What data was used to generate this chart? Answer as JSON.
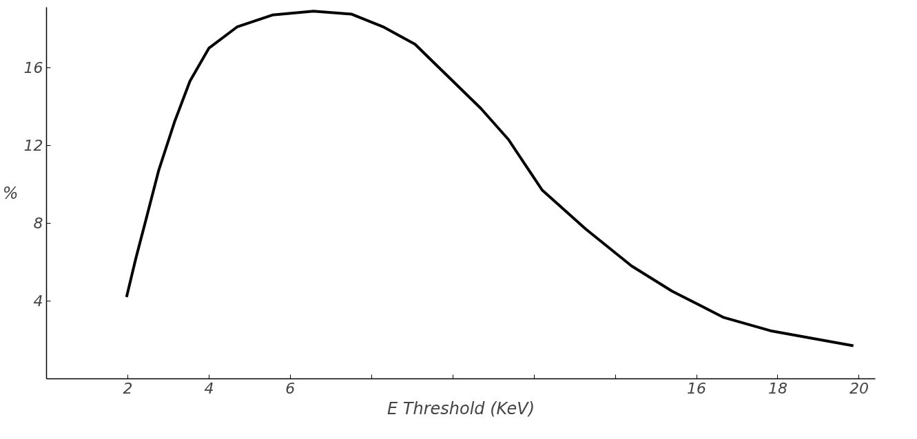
{
  "chart_data": {
    "type": "line",
    "xlabel": "E Threshold (KeV)",
    "ylabel": "%",
    "x": [
      1.97,
      2.2,
      2.45,
      2.76,
      3.15,
      3.53,
      4.0,
      4.7,
      5.56,
      6.57,
      7.5,
      8.28,
      8.72,
      9.07,
      9.56,
      10.69,
      11.37,
      12.2,
      13.27,
      14.4,
      15.4,
      16.67,
      17.82,
      19.86
    ],
    "series": [
      {
        "color": "#000000",
        "values": [
          4.2,
          6.2,
          8.2,
          10.7,
          13.2,
          15.3,
          17.0,
          18.1,
          18.7,
          18.9,
          18.75,
          18.1,
          17.6,
          17.2,
          16.2,
          13.9,
          12.3,
          9.7,
          7.7,
          5.8,
          4.5,
          3.15,
          2.47,
          1.7
        ]
      }
    ],
    "xlim": [
      0,
      20.4
    ],
    "ylim": [
      0,
      19.1
    ],
    "xticks": [
      2,
      4,
      6,
      {
        "value": 8,
        "label": null
      },
      {
        "value": 10,
        "label": null
      },
      {
        "value": 12,
        "label": null
      },
      {
        "value": 14,
        "label": null
      },
      16,
      18,
      20
    ],
    "yticks": [
      4,
      8,
      12,
      16
    ],
    "grid": false,
    "marker": "none",
    "line_style": "solid"
  }
}
